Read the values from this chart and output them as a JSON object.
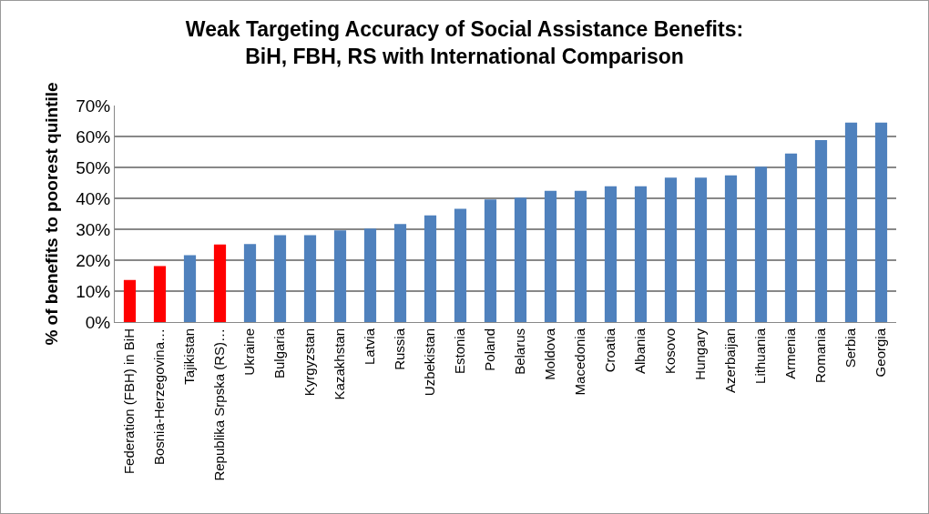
{
  "chart_data": {
    "type": "bar",
    "title": "Weak Targeting Accuracy of Social Assistance Benefits:\nBiH, FBH, RS with International Comparison",
    "ylabel": "% of benefits to poorest quintile",
    "categories": [
      "Federation (FBH) in BiH",
      "Bosnia-Herzegovina…",
      "Tajikistan",
      "Republika Srpska (RS)…",
      "Ukraine",
      "Bulgaria",
      "Kyrgyzstan",
      "Kazakhstan",
      "Latvia",
      "Russia",
      "Uzbekistan",
      "Estonia",
      "Poland",
      "Belarus",
      "Moldova",
      "Macedonia",
      "Croatia",
      "Albania",
      "Kosovo",
      "Hungary",
      "Azerbaijan",
      "Lithuania",
      "Armenia",
      "Romania",
      "Serbia",
      "Georgia"
    ],
    "values": [
      13.6,
      18.1,
      21.6,
      25.1,
      25.2,
      28.1,
      28.1,
      29.6,
      30.2,
      31.7,
      34.5,
      36.6,
      39.6,
      40.2,
      42.4,
      42.4,
      43.9,
      43.9,
      46.7,
      46.7,
      47.4,
      50.2,
      54.5,
      58.8,
      64.5,
      64.5
    ],
    "colors": [
      "#ff0000",
      "#ff0000",
      "#4f81bd",
      "#ff0000",
      "#4f81bd",
      "#4f81bd",
      "#4f81bd",
      "#4f81bd",
      "#4f81bd",
      "#4f81bd",
      "#4f81bd",
      "#4f81bd",
      "#4f81bd",
      "#4f81bd",
      "#4f81bd",
      "#4f81bd",
      "#4f81bd",
      "#4f81bd",
      "#4f81bd",
      "#4f81bd",
      "#4f81bd",
      "#4f81bd",
      "#4f81bd",
      "#4f81bd",
      "#4f81bd",
      "#4f81bd"
    ],
    "ylim": [
      0,
      70
    ],
    "yticks": [
      {
        "value": 0,
        "label": "0%"
      },
      {
        "value": 10,
        "label": "10%"
      },
      {
        "value": 20,
        "label": "20%"
      },
      {
        "value": 30,
        "label": "30%"
      },
      {
        "value": 40,
        "label": "40%"
      },
      {
        "value": 50,
        "label": "50%"
      },
      {
        "value": 60,
        "label": "60%"
      },
      {
        "value": 70,
        "label": "70%"
      }
    ],
    "grid": "y",
    "legend": false
  }
}
